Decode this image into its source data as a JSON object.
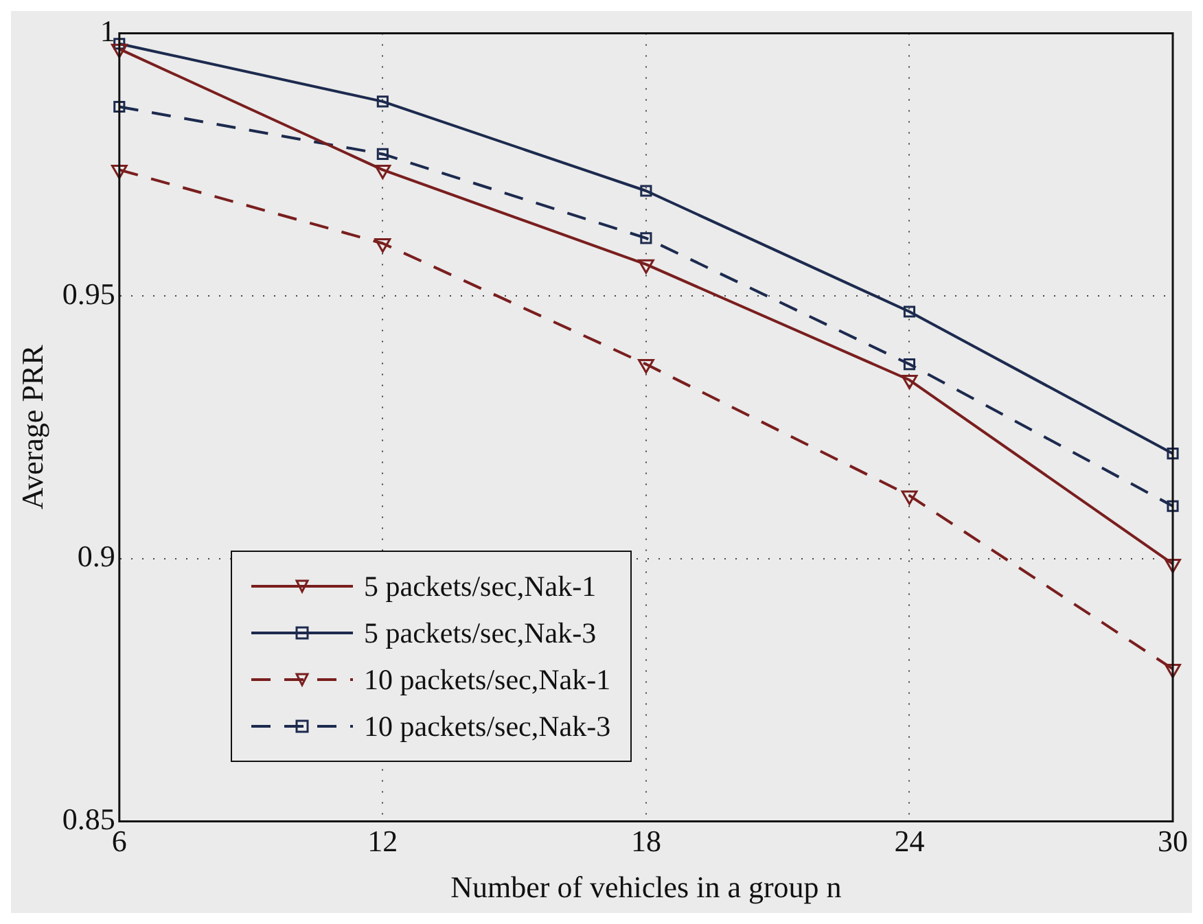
{
  "chart_data": {
    "type": "line",
    "xlabel": "Number of vehicles in a group n",
    "ylabel": "Average PRR",
    "x": [
      6,
      12,
      18,
      24,
      30
    ],
    "xlim": [
      6,
      30
    ],
    "xticks": [
      6,
      12,
      18,
      24,
      30
    ],
    "ylim": [
      0.85,
      1
    ],
    "yticks": [
      0.85,
      0.9,
      0.95,
      1
    ],
    "grid": true,
    "legend": "bottom left",
    "series": [
      {
        "name": "5 packets/sec,Nak-1",
        "color": "#7a1e1e",
        "marker": "triangle",
        "line_style": "solid",
        "values": [
          0.997,
          0.974,
          0.956,
          0.934,
          0.899
        ]
      },
      {
        "name": "5 packets/sec,Nak-3",
        "color": "#1c2a4e",
        "marker": "square",
        "line_style": "solid",
        "values": [
          0.998,
          0.987,
          0.97,
          0.947,
          0.92
        ]
      },
      {
        "name": "10 packets/sec,Nak-1",
        "color": "#7a1e1e",
        "marker": "triangle",
        "line_style": "dashed",
        "values": [
          0.974,
          0.96,
          0.937,
          0.912,
          0.879
        ]
      },
      {
        "name": "10 packets/sec,Nak-3",
        "color": "#1c2a4e",
        "marker": "square",
        "line_style": "dashed",
        "values": [
          0.986,
          0.977,
          0.961,
          0.937,
          0.91
        ]
      }
    ]
  }
}
